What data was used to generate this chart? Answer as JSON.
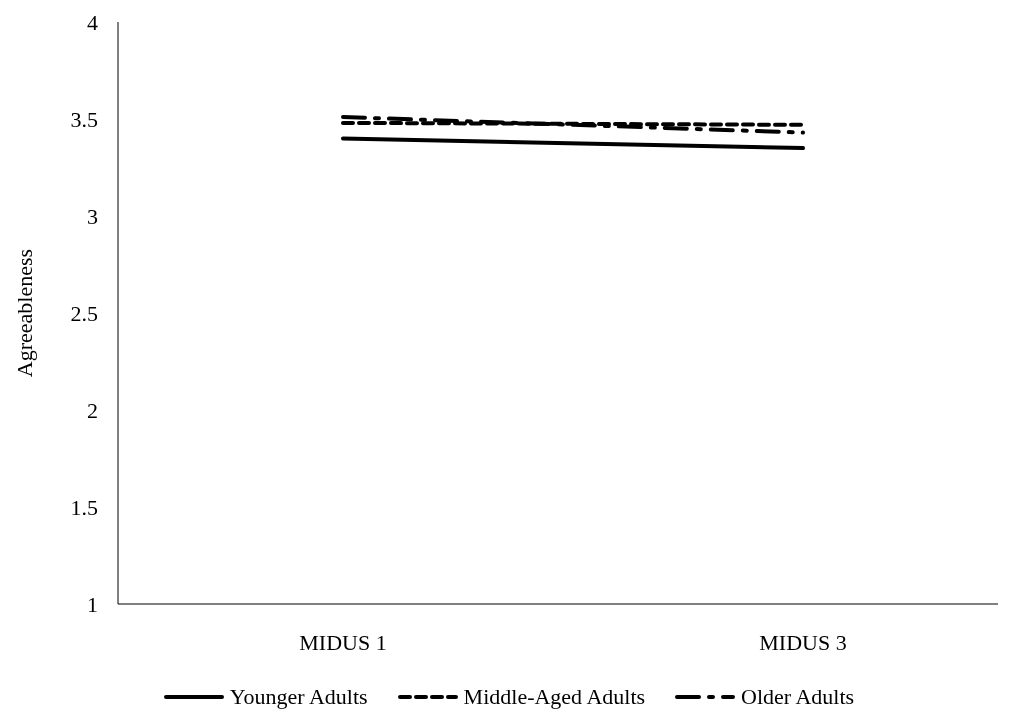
{
  "chart_data": {
    "type": "line",
    "ylabel": "Agreeableness",
    "categories": [
      "MIDUS 1",
      "MIDUS 3"
    ],
    "series": [
      {
        "name": "Younger Adults",
        "color": "#000000",
        "line_style": "solid",
        "values": [
          3.4,
          3.35
        ]
      },
      {
        "name": "Middle-Aged Adults",
        "color": "#000000",
        "line_style": "dashed",
        "values": [
          3.48,
          3.47
        ]
      },
      {
        "name": "Older Adults",
        "color": "#000000",
        "line_style": "dashdot",
        "values": [
          3.51,
          3.43
        ]
      }
    ],
    "ylim": [
      1,
      4
    ],
    "yticks": [
      1,
      1.5,
      2,
      2.5,
      3,
      3.5,
      4
    ],
    "grid": false,
    "legend": "bottom",
    "marker": "none"
  }
}
